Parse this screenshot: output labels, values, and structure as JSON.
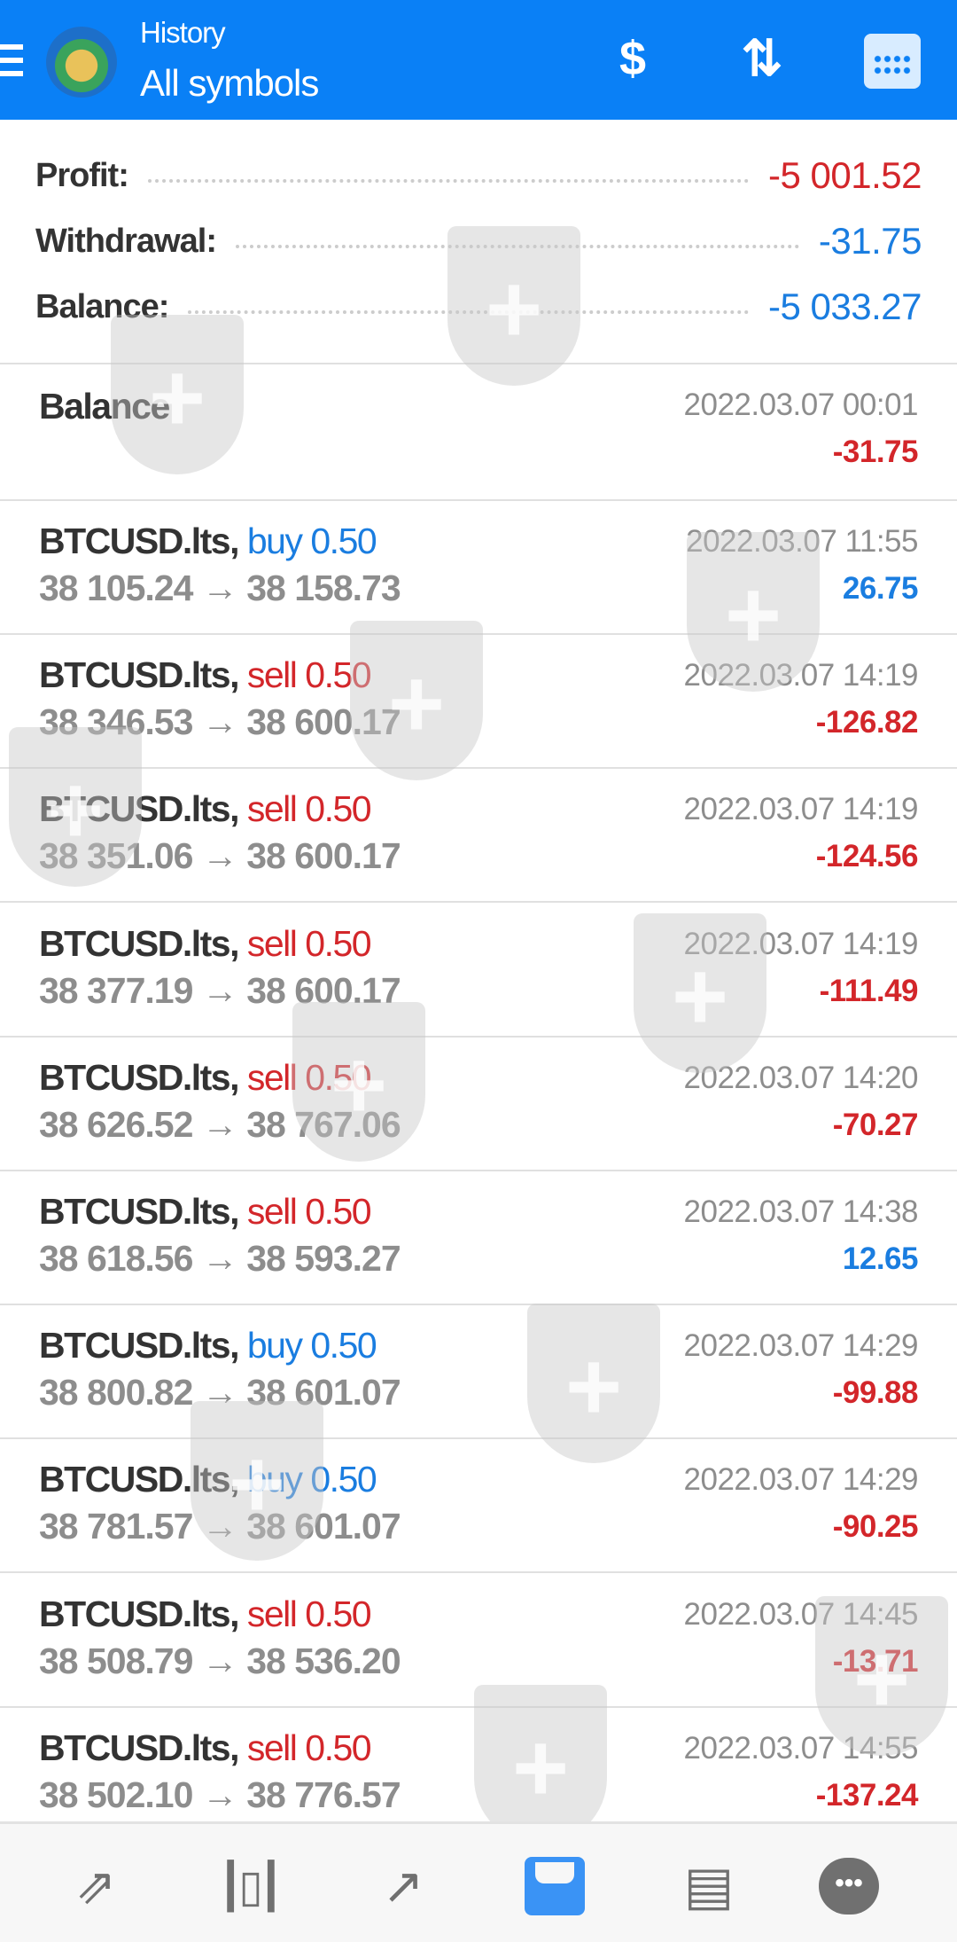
{
  "header": {
    "title": "History",
    "subtitle": "All symbols",
    "icons": [
      "menu-icon",
      "app-logo",
      "deposit-withdraw-icon",
      "sort-icon",
      "calendar-icon"
    ]
  },
  "summary": [
    {
      "label": "Profit:",
      "value": "-5 001.52",
      "color": "#d3262a"
    },
    {
      "label": "Withdrawal:",
      "value": "-31.75",
      "color": "#1a7de0"
    },
    {
      "label": "Balance:",
      "value": "-5 033.27",
      "color": "#1a7de0"
    }
  ],
  "balance_entry": {
    "label": "Balance",
    "time": "2022.03.07 00:01",
    "amount": "-31.75"
  },
  "deals": [
    {
      "symbol": "BTCUSD.lts,",
      "side": "buy 0.50",
      "open": "38 105.24",
      "close": "38 158.73",
      "time": "2022.03.07 11:55",
      "profit": "26.75"
    },
    {
      "symbol": "BTCUSD.lts,",
      "side": "sell 0.50",
      "open": "38 346.53",
      "close": "38 600.17",
      "time": "2022.03.07 14:19",
      "profit": "-126.82"
    },
    {
      "symbol": "BTCUSD.lts,",
      "side": "sell 0.50",
      "open": "38 351.06",
      "close": "38 600.17",
      "time": "2022.03.07 14:19",
      "profit": "-124.56"
    },
    {
      "symbol": "BTCUSD.lts,",
      "side": "sell 0.50",
      "open": "38 377.19",
      "close": "38 600.17",
      "time": "2022.03.07 14:19",
      "profit": "-111.49"
    },
    {
      "symbol": "BTCUSD.lts,",
      "side": "sell 0.50",
      "open": "38 626.52",
      "close": "38 767.06",
      "time": "2022.03.07 14:20",
      "profit": "-70.27"
    },
    {
      "symbol": "BTCUSD.lts,",
      "side": "sell 0.50",
      "open": "38 618.56",
      "close": "38 593.27",
      "time": "2022.03.07 14:38",
      "profit": "12.65"
    },
    {
      "symbol": "BTCUSD.lts,",
      "side": "buy 0.50",
      "open": "38 800.82",
      "close": "38 601.07",
      "time": "2022.03.07 14:29",
      "profit": "-99.88"
    },
    {
      "symbol": "BTCUSD.lts,",
      "side": "buy 0.50",
      "open": "38 781.57",
      "close": "38 601.07",
      "time": "2022.03.07 14:29",
      "profit": "-90.25"
    },
    {
      "symbol": "BTCUSD.lts,",
      "side": "sell 0.50",
      "open": "38 508.79",
      "close": "38 536.20",
      "time": "2022.03.07 14:45",
      "profit": "-13.71"
    },
    {
      "symbol": "BTCUSD.lts,",
      "side": "sell 0.50",
      "open": "38 502.10",
      "close": "38 776.57",
      "time": "2022.03.07 14:55",
      "profit": "-137.24"
    }
  ],
  "arrow": "→",
  "nav": {
    "active": "history",
    "items": [
      "quotes-icon",
      "chart-icon",
      "trade-icon",
      "history-icon",
      "news-icon",
      "chat-icon"
    ]
  },
  "colors": {
    "header": "#0a80f6",
    "buy": "#1a7de0",
    "sell": "#d3262a",
    "profit_positive": "#1a7de0",
    "profit_negative": "#d3262a"
  }
}
